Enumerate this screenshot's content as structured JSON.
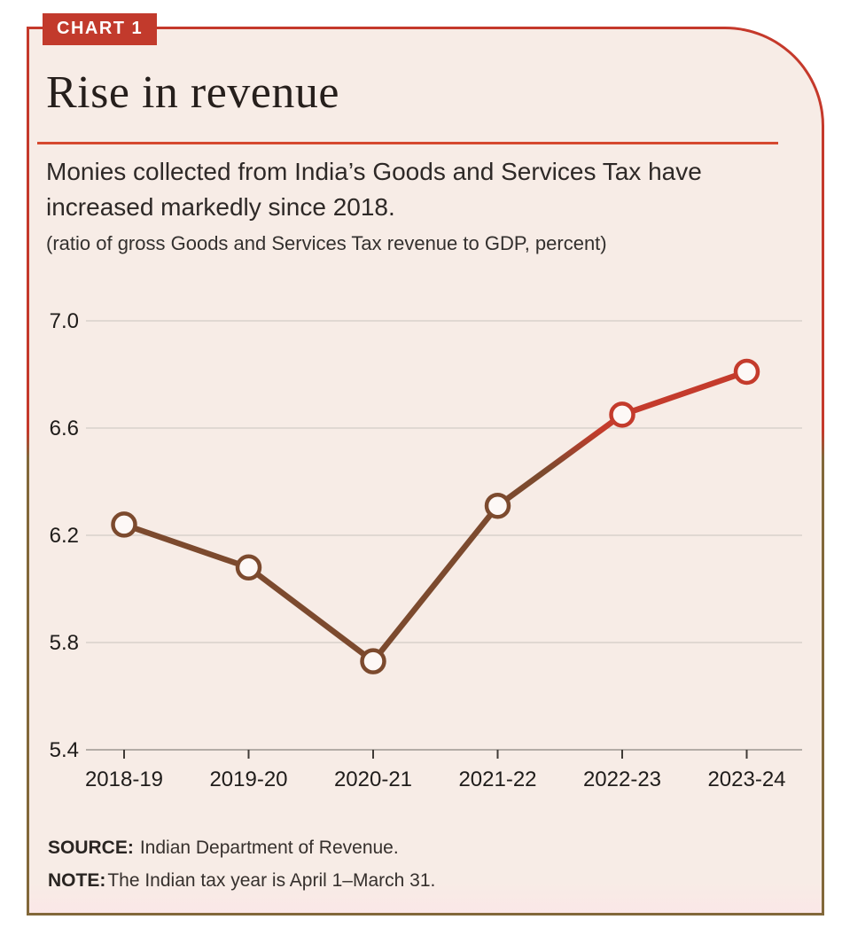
{
  "badge": {
    "label": "CHART 1"
  },
  "header": {
    "title": "Rise in revenue"
  },
  "description": {
    "lines": [
      "Monies collected from India’s Goods and Services Tax have",
      "increased markedly since 2018."
    ],
    "unit_note": "(ratio of gross Goods and Services Tax revenue to GDP, percent)"
  },
  "footer": {
    "source_label": "SOURCE:",
    "source_text": "Indian Department of Revenue.",
    "note_label": "NOTE:",
    "note_text": "The Indian tax year is April 1–March 31."
  },
  "colors": {
    "card_background": "#f7ece6",
    "badge_red": "#c23a2c",
    "rule_red": "#d6492f",
    "line_red_upper": "#c43b2c",
    "line_brown_lower": "#7c4a2e",
    "border_olive_lower": "#82683a",
    "marker_fill": "#fdf8f6",
    "gridline_gray": "#d8d1cb"
  },
  "chart_data": {
    "type": "line",
    "title": "Rise in revenue",
    "subtitle": "Monies collected from India’s Goods and Services Tax have increased markedly since 2018.",
    "unit": "(ratio of gross Goods and Services Tax revenue to GDP, percent)",
    "categories": [
      "2018-19",
      "2019-20",
      "2020-21",
      "2021-22",
      "2022-23",
      "2023-24"
    ],
    "series": [
      {
        "name": "Gross GST revenue to GDP (percent)",
        "values": [
          6.24,
          6.08,
          5.73,
          6.31,
          6.65,
          6.81
        ]
      }
    ],
    "xlabel": "",
    "ylabel": "",
    "ylim": [
      5.4,
      7.0
    ],
    "yticks": [
      7.0,
      6.6,
      6.2,
      5.8,
      5.4
    ],
    "grid": true,
    "legend": "none",
    "marker": "open-circle"
  }
}
